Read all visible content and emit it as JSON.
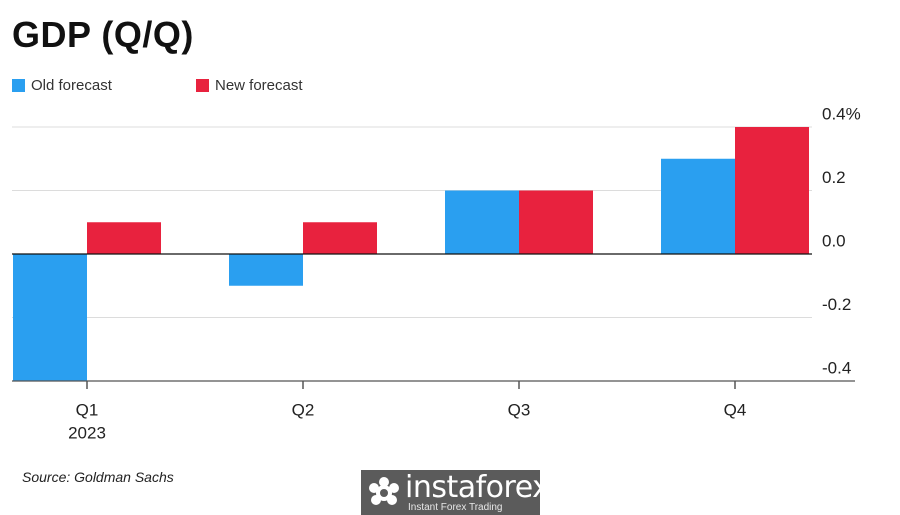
{
  "title": "GDP (Q/Q)",
  "source": "Source: Goldman Sachs",
  "watermark": {
    "name": "instaforex",
    "tagline": "Instant Forex Trading",
    "icon": "gear-flower-icon"
  },
  "colors": {
    "old": "#2a9ff0",
    "new": "#e8223e",
    "grid": "#dcdcdc",
    "zero": "#111111"
  },
  "chart_data": {
    "type": "bar",
    "categories": [
      "Q1",
      "Q2",
      "Q3",
      "Q4"
    ],
    "category_sublabels": [
      "2023",
      "",
      "",
      ""
    ],
    "series": [
      {
        "name": "Old forecast",
        "values": [
          -0.4,
          -0.1,
          0.2,
          0.3
        ]
      },
      {
        "name": "New forecast",
        "values": [
          0.1,
          0.1,
          0.2,
          0.4
        ]
      }
    ],
    "ylim": [
      -0.4,
      0.4
    ],
    "yticks": [
      0.4,
      0.2,
      0.0,
      -0.2,
      -0.4
    ],
    "ytick_labels": [
      "0.4%",
      "0.2",
      "0.0",
      "-0.2",
      "-0.4"
    ],
    "grid": true,
    "y_axis_position": "right",
    "legend_position": "top-left"
  }
}
